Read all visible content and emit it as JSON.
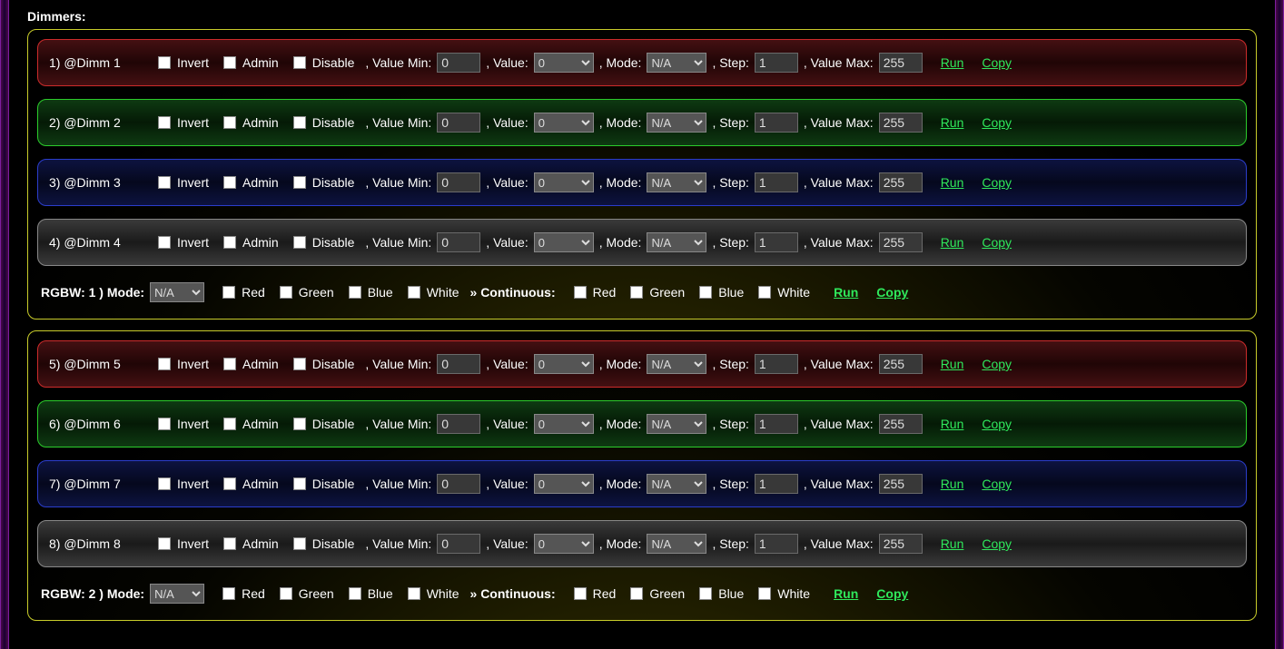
{
  "colors": {
    "link": "#2fe85b",
    "row_border": {
      "red": "#cc2b2b",
      "green": "#2bcc2b",
      "blue": "#2b3dcc",
      "gray": "#888888"
    },
    "group_border": "#c8cc2a",
    "side_stripe": "#4a0a4a",
    "input_bg": "#383838"
  },
  "title": "Dimmers:",
  "labels": {
    "invert": "Invert",
    "admin": "Admin",
    "disable": "Disable",
    "valueMin": ", Value Min:",
    "value": ", Value:",
    "mode": ", Mode:",
    "step": ", Step:",
    "valueMax": ", Value Max:",
    "run": "Run",
    "copy": "Copy",
    "rgbwPrefix": "RGBW:",
    "rgbwMode": ") Mode:",
    "red": "Red",
    "green": "Green",
    "blue": "Blue",
    "white": "White",
    "continuous": "» Continuous:"
  },
  "value_options": [
    "0"
  ],
  "mode_options": [
    "N/A"
  ],
  "groups": [
    {
      "rgbw_index": "1",
      "rgbw_mode": "N/A",
      "dimmers": [
        {
          "idx": "1",
          "name": "@Dimm 1",
          "color": "red",
          "invert": false,
          "admin": false,
          "disable": false,
          "vmin": "0",
          "value": "0",
          "mode": "N/A",
          "step": "1",
          "vmax": "255"
        },
        {
          "idx": "2",
          "name": "@Dimm 2",
          "color": "green",
          "invert": false,
          "admin": false,
          "disable": false,
          "vmin": "0",
          "value": "0",
          "mode": "N/A",
          "step": "1",
          "vmax": "255"
        },
        {
          "idx": "3",
          "name": "@Dimm 3",
          "color": "blue",
          "invert": false,
          "admin": false,
          "disable": false,
          "vmin": "0",
          "value": "0",
          "mode": "N/A",
          "step": "1",
          "vmax": "255"
        },
        {
          "idx": "4",
          "name": "@Dimm 4",
          "color": "gray",
          "invert": false,
          "admin": false,
          "disable": false,
          "vmin": "0",
          "value": "0",
          "mode": "N/A",
          "step": "1",
          "vmax": "255"
        }
      ],
      "rgbw": {
        "red": false,
        "green": false,
        "blue": false,
        "white": false,
        "c_red": false,
        "c_green": false,
        "c_blue": false,
        "c_white": false
      }
    },
    {
      "rgbw_index": "2",
      "rgbw_mode": "N/A",
      "dimmers": [
        {
          "idx": "5",
          "name": "@Dimm 5",
          "color": "red",
          "invert": false,
          "admin": false,
          "disable": false,
          "vmin": "0",
          "value": "0",
          "mode": "N/A",
          "step": "1",
          "vmax": "255"
        },
        {
          "idx": "6",
          "name": "@Dimm 6",
          "color": "green",
          "invert": false,
          "admin": false,
          "disable": false,
          "vmin": "0",
          "value": "0",
          "mode": "N/A",
          "step": "1",
          "vmax": "255"
        },
        {
          "idx": "7",
          "name": "@Dimm 7",
          "color": "blue",
          "invert": false,
          "admin": false,
          "disable": false,
          "vmin": "0",
          "value": "0",
          "mode": "N/A",
          "step": "1",
          "vmax": "255"
        },
        {
          "idx": "8",
          "name": "@Dimm 8",
          "color": "gray",
          "invert": false,
          "admin": false,
          "disable": false,
          "vmin": "0",
          "value": "0",
          "mode": "N/A",
          "step": "1",
          "vmax": "255"
        }
      ],
      "rgbw": {
        "red": false,
        "green": false,
        "blue": false,
        "white": false,
        "c_red": false,
        "c_green": false,
        "c_blue": false,
        "c_white": false
      }
    }
  ]
}
